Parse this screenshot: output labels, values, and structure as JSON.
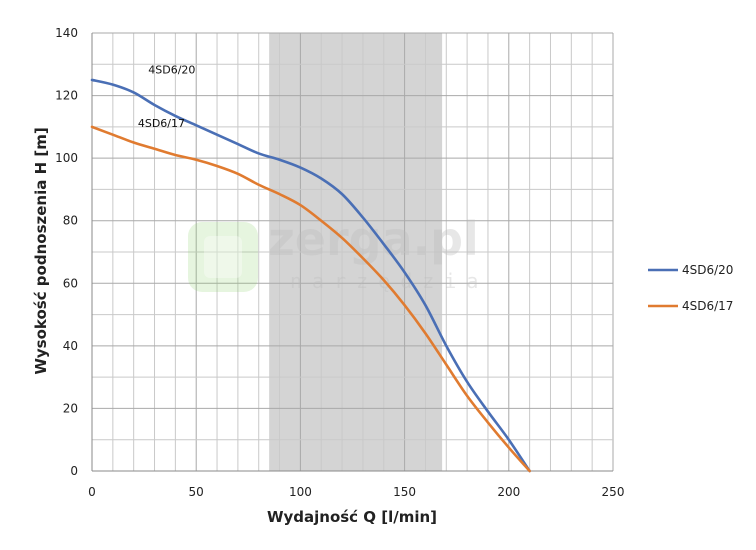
{
  "chart_data": {
    "type": "line",
    "xlabel": "Wydajność Q [l/min]",
    "ylabel": "Wysokość podnoszenia H [m]",
    "xlim": [
      0,
      250
    ],
    "ylim": [
      0,
      140
    ],
    "x_ticks": [
      0,
      50,
      100,
      150,
      200,
      250
    ],
    "y_ticks": [
      0,
      20,
      40,
      60,
      80,
      100,
      120,
      140
    ],
    "x_ticks_labels": [
      "0",
      "50",
      "100",
      "150",
      "200",
      "250"
    ],
    "y_ticks_labels": [
      "0",
      "20",
      "40",
      "60",
      "80",
      "100",
      "120",
      "140"
    ],
    "grid": true,
    "shaded_range_x": [
      85,
      168
    ],
    "legend_position": "right",
    "series": [
      {
        "name": "4SD6/20",
        "color": "#4a6fb5",
        "x": [
          0,
          10,
          20,
          30,
          40,
          50,
          60,
          70,
          80,
          90,
          100,
          110,
          120,
          130,
          140,
          150,
          160,
          170,
          180,
          190,
          200,
          210
        ],
        "y": [
          125,
          123.5,
          121,
          117,
          113.5,
          110.5,
          107.5,
          104.5,
          101.5,
          99.5,
          97,
          93.5,
          88.5,
          81,
          72.5,
          63.5,
          53,
          40,
          28.5,
          19,
          10,
          0
        ]
      },
      {
        "name": "4SD6/17",
        "color": "#e07b30",
        "x": [
          0,
          10,
          20,
          30,
          40,
          50,
          60,
          70,
          80,
          90,
          100,
          110,
          120,
          130,
          140,
          150,
          160,
          170,
          180,
          190,
          200,
          210
        ],
        "y": [
          110,
          107.5,
          105,
          103,
          101,
          99.5,
          97.5,
          95,
          91.5,
          88.5,
          85,
          80,
          74.5,
          68,
          61,
          53,
          44,
          34,
          24,
          15.5,
          7.5,
          0
        ]
      }
    ],
    "series_labels": [
      {
        "text": "4SD6/20",
        "x": 27,
        "y": 127
      },
      {
        "text": "4SD6/17",
        "x": 22,
        "y": 110
      }
    ]
  },
  "watermark": {
    "main": "zerga.pl",
    "sub": "narzędzia"
  }
}
